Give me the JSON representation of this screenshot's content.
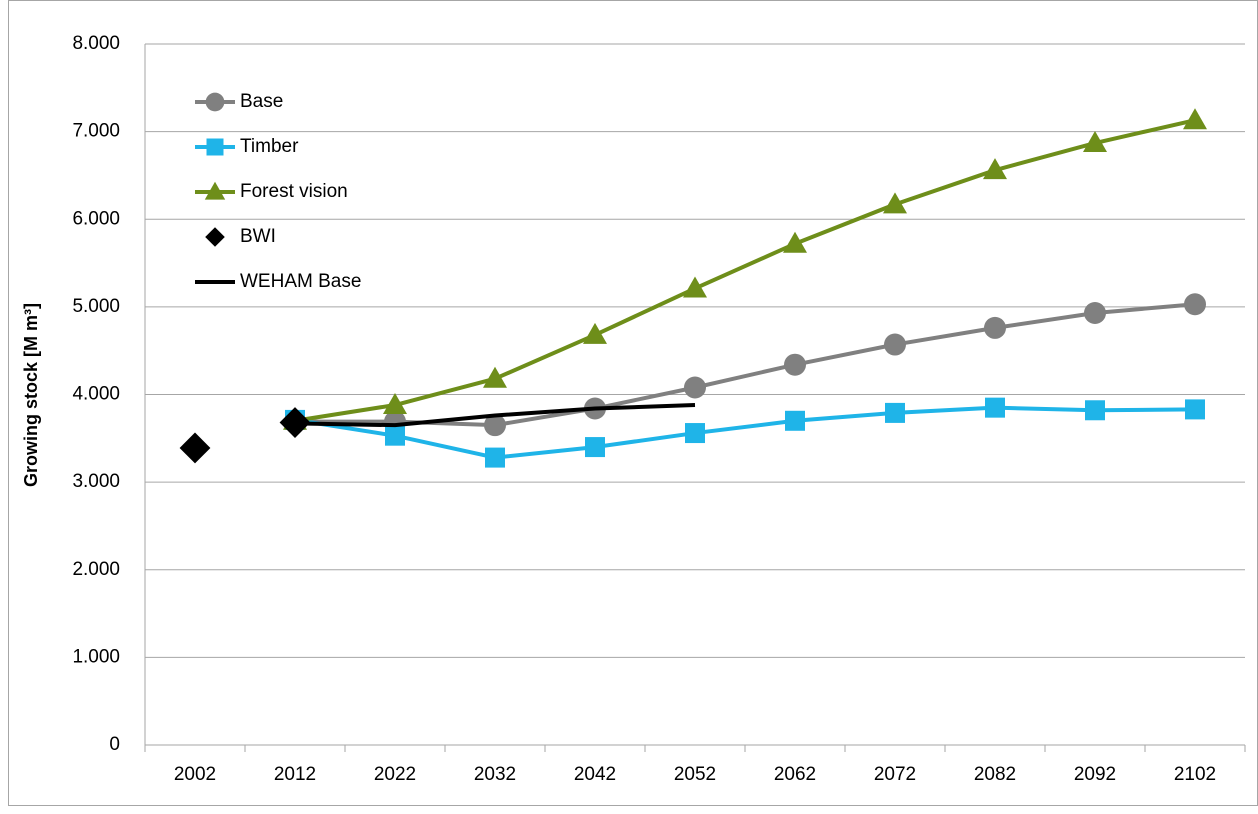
{
  "chart_data": {
    "type": "line",
    "y_label": "Growing stock [M m³]",
    "categories": [
      "2002",
      "2012",
      "2022",
      "2032",
      "2042",
      "2052",
      "2062",
      "2072",
      "2082",
      "2092",
      "2102"
    ],
    "series": [
      {
        "name": "Base",
        "color": "#808080",
        "marker": "circle",
        "line": true,
        "values": [
          null,
          3690,
          3690,
          3650,
          3840,
          4080,
          4340,
          4570,
          4760,
          4930,
          5030
        ]
      },
      {
        "name": "Timber",
        "color": "#1fb4e8",
        "marker": "square",
        "line": true,
        "values": [
          null,
          3710,
          3530,
          3280,
          3400,
          3560,
          3700,
          3790,
          3850,
          3820,
          3830
        ]
      },
      {
        "name": "Forest vision",
        "color": "#6e8e1a",
        "marker": "triangle",
        "line": true,
        "values": [
          null,
          3700,
          3880,
          4180,
          4680,
          5210,
          5720,
          6170,
          6560,
          6870,
          7130
        ]
      },
      {
        "name": "BWI",
        "color": "#000000",
        "marker": "diamond",
        "line": false,
        "values": [
          3390,
          3680,
          null,
          null,
          null,
          null,
          null,
          null,
          null,
          null,
          null
        ]
      },
      {
        "name": "WEHAM Base",
        "color": "#000000",
        "marker": "none",
        "line": true,
        "values": [
          null,
          3670,
          3650,
          3760,
          3840,
          3880,
          null,
          null,
          null,
          null,
          null
        ]
      }
    ],
    "ylim": [
      0,
      8000
    ],
    "yticks": [
      0,
      {
        "value": 1000,
        "label": "1.000"
      },
      {
        "value": 2000,
        "label": "2.000"
      },
      {
        "value": 3000,
        "label": "3.000"
      },
      {
        "value": 4000,
        "label": "4.000"
      },
      {
        "value": 5000,
        "label": "5.000"
      },
      {
        "value": 6000,
        "label": "6.000"
      },
      {
        "value": 7000,
        "label": "7.000"
      },
      {
        "value": 8000,
        "label": "8.000"
      }
    ],
    "grid": true,
    "legend": "upper left"
  }
}
